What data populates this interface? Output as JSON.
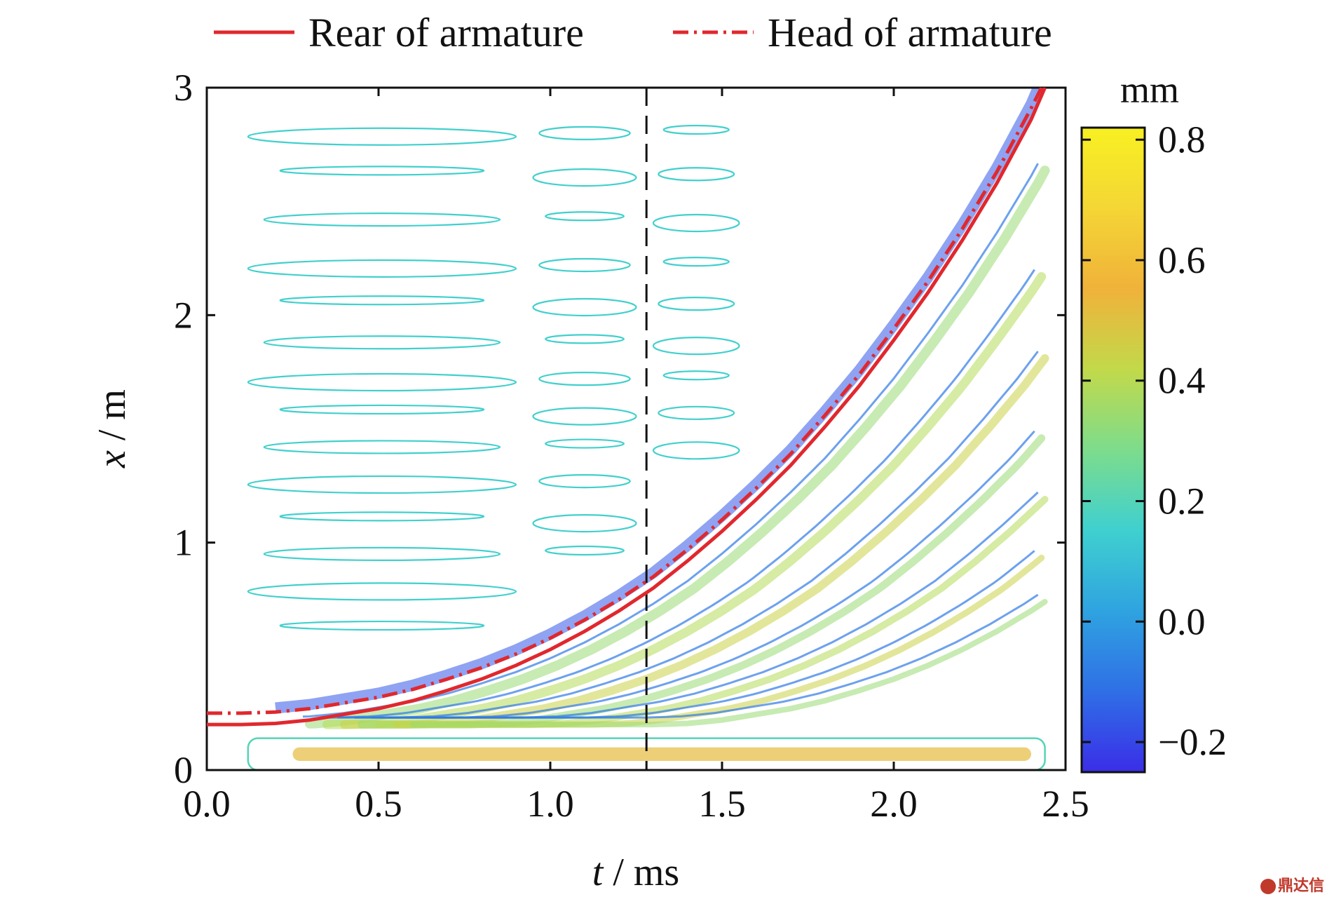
{
  "chart_data": {
    "type": "heatmap",
    "title": "",
    "xlabel_var": "t",
    "xlabel_unit": " / ms",
    "ylabel_var": "x",
    "ylabel_unit": " / m",
    "xlim": [
      0.0,
      2.5
    ],
    "ylim": [
      0,
      3
    ],
    "xticks": [
      "0.0",
      "0.5",
      "1.0",
      "1.5",
      "2.0",
      "2.5"
    ],
    "xtick_values": [
      0.0,
      0.5,
      1.0,
      1.5,
      2.0,
      2.5
    ],
    "yticks": [
      "0",
      "1",
      "2",
      "3"
    ],
    "ytick_values": [
      0,
      1,
      2,
      3
    ],
    "grid": false,
    "legend_placement": "top",
    "vertical_marker_t": 1.28,
    "series": [
      {
        "name": "Rear of armature",
        "style": "solid",
        "color": "#e0282e",
        "x": [
          0.0,
          0.1,
          0.2,
          0.3,
          0.4,
          0.5,
          0.6,
          0.7,
          0.8,
          0.9,
          1.0,
          1.1,
          1.2,
          1.3,
          1.4,
          1.5,
          1.6,
          1.7,
          1.8,
          1.9,
          2.0,
          2.1,
          2.2,
          2.3,
          2.4,
          2.44
        ],
        "y": [
          0.2,
          0.2,
          0.205,
          0.22,
          0.245,
          0.27,
          0.305,
          0.35,
          0.4,
          0.46,
          0.53,
          0.61,
          0.7,
          0.8,
          0.92,
          1.05,
          1.19,
          1.34,
          1.51,
          1.69,
          1.89,
          2.1,
          2.33,
          2.58,
          2.86,
          3.0
        ]
      },
      {
        "name": "Head of armature",
        "style": "dash-dot",
        "color": "#e0282e",
        "x": [
          0.0,
          0.1,
          0.2,
          0.3,
          0.4,
          0.5,
          0.6,
          0.7,
          0.8,
          0.9,
          1.0,
          1.1,
          1.2,
          1.3,
          1.4,
          1.5,
          1.6,
          1.7,
          1.8,
          1.9,
          2.0,
          2.1,
          2.2,
          2.3,
          2.4,
          2.43
        ],
        "y": [
          0.25,
          0.25,
          0.255,
          0.27,
          0.295,
          0.32,
          0.355,
          0.4,
          0.45,
          0.51,
          0.58,
          0.66,
          0.75,
          0.85,
          0.97,
          1.1,
          1.24,
          1.39,
          1.56,
          1.74,
          1.94,
          2.15,
          2.38,
          2.63,
          2.91,
          3.0
        ]
      }
    ],
    "colorbar": {
      "unit": "mm",
      "min": -0.25,
      "max": 0.82,
      "ticks": [
        "0.8",
        "0.6",
        "0.4",
        "0.2",
        "0.0",
        "−0.2"
      ],
      "tick_values": [
        0.8,
        0.6,
        0.4,
        0.2,
        0.0,
        -0.2
      ],
      "colormap": [
        "#3a2ee8",
        "#2f6fe6",
        "#2fa3e0",
        "#3fd0d0",
        "#7ddc8c",
        "#c2d94a",
        "#f0b23a",
        "#f4d635",
        "#f8f022"
      ]
    }
  },
  "watermark_text": "鼎达信"
}
